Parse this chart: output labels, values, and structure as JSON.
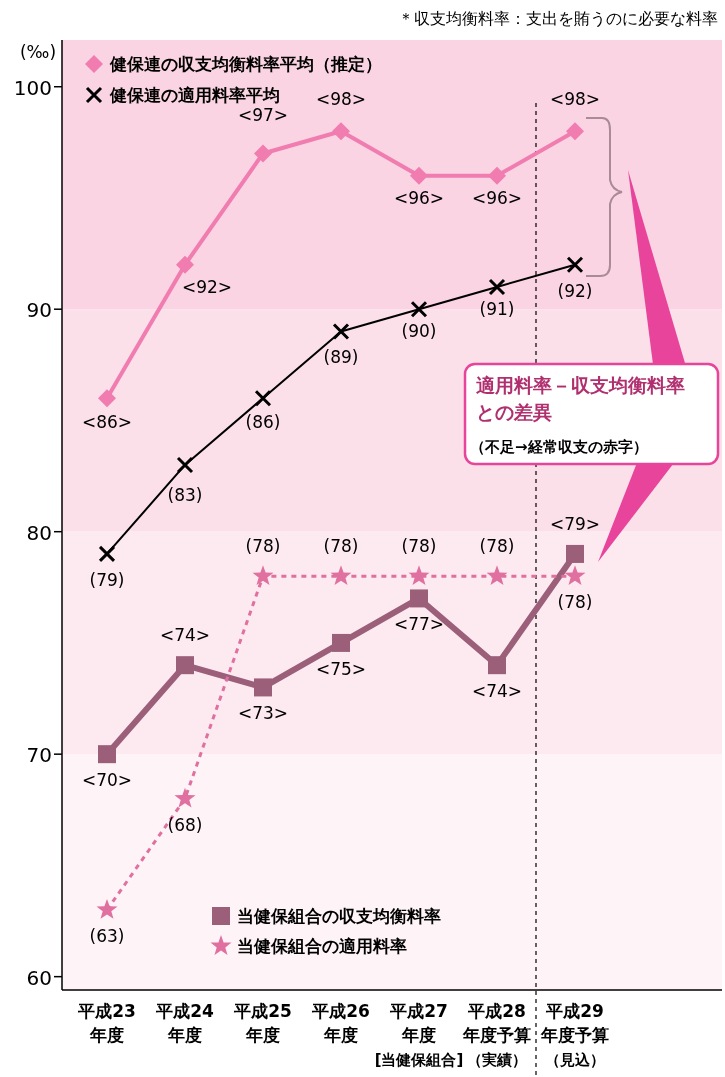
{
  "chart_data": {
    "type": "line",
    "ylabel": "(‰)",
    "categories": [
      "平成23年度",
      "平成24年度",
      "平成25年度",
      "平成26年度",
      "平成27年度[当健保組合]",
      "平成28年度予算（実績）",
      "平成29年度予算（見込）"
    ],
    "ylim": [
      59.4,
      102.1
    ],
    "yticks": [
      60,
      70,
      80,
      90,
      100
    ],
    "series": [
      {
        "name": "健保連の収支均衡料率平均（推定）",
        "color": "#f07cb0",
        "marker": "diamond",
        "line_style": "solid",
        "values": [
          86,
          92,
          97,
          98,
          96,
          96,
          98
        ],
        "value_labels": [
          "<86>",
          "<92>",
          "<97>",
          "<98>",
          "<96>",
          "<96>",
          "<98>"
        ]
      },
      {
        "name": "健保連の適用料率平均",
        "color": "#000000",
        "marker": "cross",
        "line_style": "solid",
        "values": [
          79,
          83,
          86,
          89,
          90,
          91,
          92
        ],
        "value_labels": [
          "(79)",
          "(83)",
          "(86)",
          "(89)",
          "(90)",
          "(91)",
          "(92)"
        ]
      },
      {
        "name": "当健保組合の収支均衡料率",
        "color": "#9b5f7a",
        "marker": "square",
        "line_style": "solid",
        "values": [
          70,
          74,
          73,
          75,
          77,
          74,
          79
        ],
        "value_labels": [
          "<70>",
          "<74>",
          "<73>",
          "<75>",
          "<77>",
          "<74>",
          "<79>"
        ]
      },
      {
        "name": "当健保組合の適用料率",
        "color": "#e0709f",
        "marker": "star",
        "line_style": "dashed",
        "values": [
          63,
          68,
          78,
          78,
          78,
          78,
          78
        ],
        "value_labels": [
          "(63)",
          "(68)",
          "(78)",
          "(78)",
          "(78)",
          "(78)",
          "(78)"
        ]
      }
    ],
    "bands": [
      {
        "axis": "y",
        "from": 90,
        "to": 102.1,
        "color": "#fad4e2"
      },
      {
        "axis": "y",
        "from": 80,
        "to": 90,
        "color": "#fbe0ea"
      },
      {
        "axis": "y",
        "from": 70,
        "to": 80,
        "color": "#fdeaf1"
      },
      {
        "axis": "y",
        "from": 59.4,
        "to": 70,
        "color": "#fef3f7"
      }
    ],
    "annotations": [
      "＊収支均衡料率：支出を賄うのに必要な料率",
      "適用料率－収支均衡料率との差異",
      "（不足→経常収支の赤字）"
    ],
    "legend": "top left",
    "grid": false
  }
}
